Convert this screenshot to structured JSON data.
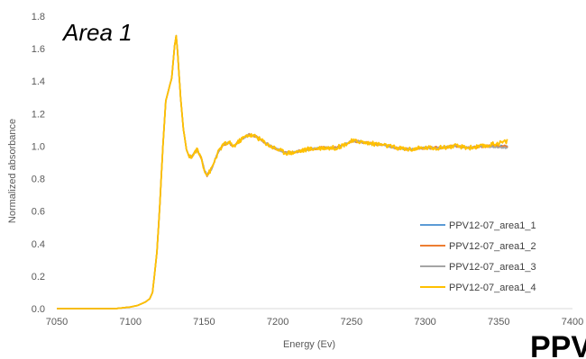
{
  "annotation": "Area 1",
  "corner_text": "PPV",
  "chart_data": {
    "type": "line",
    "title": "",
    "xlabel": "Energy (Ev)",
    "ylabel": "Normalized absorbance",
    "xlim": [
      7050,
      7400
    ],
    "ylim": [
      0,
      1.8
    ],
    "xticks": [
      7050,
      7100,
      7150,
      7200,
      7250,
      7300,
      7350,
      7400
    ],
    "yticks": [
      "0.0",
      "0.2",
      "0.4",
      "0.6",
      "0.8",
      "1.0",
      "1.2",
      "1.4",
      "1.6",
      "1.8"
    ],
    "grid": false,
    "legend_position": "bottom-right",
    "series": [
      {
        "name": "PPV12-07_area1_1",
        "color": "#5B9BD5",
        "noise": 0.005,
        "endbump": 0.0
      },
      {
        "name": "PPV12-07_area1_2",
        "color": "#ED7D31",
        "noise": 0.008,
        "endbump": 0.0
      },
      {
        "name": "PPV12-07_area1_3",
        "color": "#A5A5A5",
        "noise": 0.006,
        "endbump": -0.01
      },
      {
        "name": "PPV12-07_area1_4",
        "color": "#FFC000",
        "noise": 0.014,
        "endbump": 0.03
      }
    ],
    "x": [
      7050,
      7090,
      7100,
      7105,
      7110,
      7113,
      7115,
      7118,
      7120,
      7122,
      7124,
      7126,
      7128,
      7130,
      7131,
      7132,
      7134,
      7136,
      7138,
      7140,
      7142,
      7145,
      7148,
      7150,
      7152,
      7155,
      7158,
      7160,
      7163,
      7167,
      7170,
      7175,
      7180,
      7185,
      7190,
      7195,
      7200,
      7205,
      7210,
      7215,
      7220,
      7230,
      7240,
      7245,
      7250,
      7255,
      7260,
      7270,
      7280,
      7290,
      7300,
      7310,
      7320,
      7330,
      7340,
      7350,
      7356
    ],
    "y": [
      0.0,
      0.0,
      0.01,
      0.02,
      0.04,
      0.06,
      0.1,
      0.35,
      0.65,
      1.0,
      1.28,
      1.35,
      1.42,
      1.62,
      1.68,
      1.58,
      1.3,
      1.1,
      0.98,
      0.93,
      0.94,
      0.98,
      0.93,
      0.86,
      0.82,
      0.86,
      0.93,
      0.97,
      1.01,
      1.02,
      1.0,
      1.04,
      1.07,
      1.06,
      1.03,
      1.0,
      0.98,
      0.96,
      0.96,
      0.97,
      0.98,
      0.99,
      0.99,
      1.01,
      1.03,
      1.03,
      1.02,
      1.01,
      0.99,
      0.98,
      0.99,
      0.99,
      1.0,
      0.99,
      1.0,
      1.0,
      1.0
    ]
  }
}
